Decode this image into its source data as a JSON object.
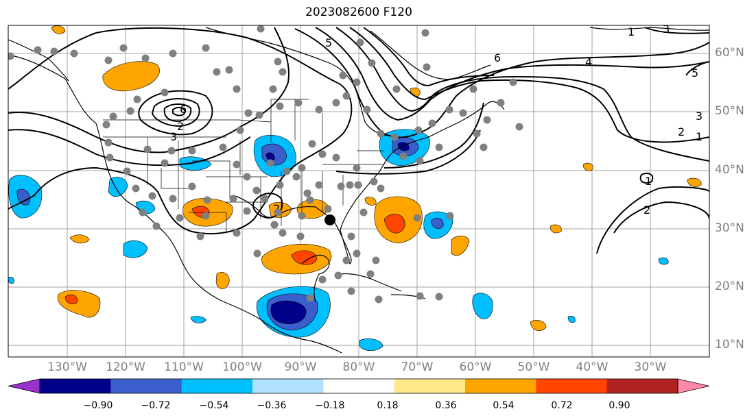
{
  "title": "2023082600 F120",
  "map": {
    "lat_labels": [
      "10°N",
      "20°N",
      "30°N",
      "40°N",
      "50°N",
      "60°N"
    ],
    "lon_labels": [
      "130°W",
      "120°W",
      "110°W",
      "100°W",
      "90°W",
      "80°W",
      "70°W",
      "60°W",
      "50°W",
      "40°W",
      "30°W"
    ],
    "contour_labels": [
      "6",
      "4",
      "5",
      "3",
      "2",
      "1",
      "5",
      "3",
      "2",
      "1",
      "2",
      "6",
      "5",
      "3",
      "1",
      "2"
    ],
    "colors": {
      "land": "#000000",
      "grid": "#a0a0a0",
      "contour": "#000000",
      "station": "#808080"
    }
  },
  "colorbar": {
    "ticks": [
      "−0.90",
      "−0.72",
      "−0.54",
      "−0.36",
      "−0.18",
      "0.18",
      "0.36",
      "0.54",
      "0.72",
      "0.90"
    ],
    "colors": [
      "#9932cc",
      "#00008b",
      "#3a5fcd",
      "#00bfff",
      "#b0e2ff",
      "#ffffff",
      "#ffe98a",
      "#ffa500",
      "#ff4500",
      "#b22222",
      "#ff88aa"
    ]
  }
}
